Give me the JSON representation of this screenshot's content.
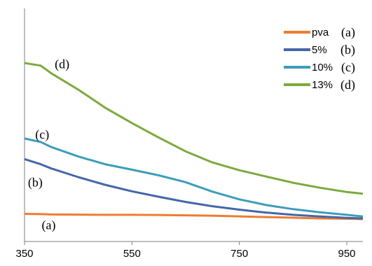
{
  "chart_data": {
    "type": "line",
    "xlim": [
      350,
      980
    ],
    "ylim": [
      0,
      1
    ],
    "xticks": [
      "350",
      "550",
      "750",
      "950"
    ],
    "xtick_values": [
      350,
      550,
      750,
      950
    ],
    "legend_position": "top-right",
    "grid": false,
    "series": [
      {
        "name": "pva",
        "tag": "(a)",
        "color": "#ED7D31",
        "x": [
          350,
          360,
          380,
          400,
          450,
          500,
          550,
          600,
          650,
          700,
          750,
          800,
          850,
          900,
          950,
          980
        ],
        "y": [
          0.03,
          0.03,
          0.029,
          0.027,
          0.026,
          0.025,
          0.025,
          0.024,
          0.022,
          0.02,
          0.016,
          0.012,
          0.008,
          0.004,
          0.002,
          0.0
        ]
      },
      {
        "name": "5%",
        "tag": "(b)",
        "color": "#4566A8",
        "x": [
          350,
          380,
          400,
          450,
          500,
          550,
          600,
          650,
          700,
          750,
          800,
          850,
          900,
          950,
          980
        ],
        "y": [
          0.35,
          0.32,
          0.295,
          0.245,
          0.2,
          0.162,
          0.13,
          0.1,
          0.075,
          0.055,
          0.038,
          0.025,
          0.015,
          0.007,
          0.004
        ]
      },
      {
        "name": "10%",
        "tag": "(c)",
        "color": "#3D9DB9",
        "x": [
          350,
          380,
          400,
          450,
          500,
          550,
          600,
          650,
          700,
          750,
          800,
          850,
          900,
          950,
          980
        ],
        "y": [
          0.47,
          0.45,
          0.42,
          0.365,
          0.32,
          0.288,
          0.255,
          0.215,
          0.16,
          0.115,
          0.082,
          0.058,
          0.04,
          0.025,
          0.015
        ]
      },
      {
        "name": "13%",
        "tag": "(d)",
        "color": "#7BAA3E",
        "x": [
          350,
          360,
          380,
          400,
          450,
          500,
          550,
          600,
          650,
          700,
          750,
          800,
          850,
          900,
          950,
          980
        ],
        "y": [
          0.91,
          0.905,
          0.895,
          0.85,
          0.755,
          0.65,
          0.56,
          0.475,
          0.395,
          0.33,
          0.285,
          0.248,
          0.212,
          0.183,
          0.158,
          0.148
        ]
      }
    ],
    "annotations": [
      {
        "text": "(d)",
        "x": 420,
        "y": 0.88
      },
      {
        "text": "(c)",
        "x": 383,
        "y": 0.47
      },
      {
        "text": "(b)",
        "x": 370,
        "y": 0.19
      },
      {
        "text": "(a)",
        "x": 395,
        "y": -0.06
      }
    ]
  }
}
